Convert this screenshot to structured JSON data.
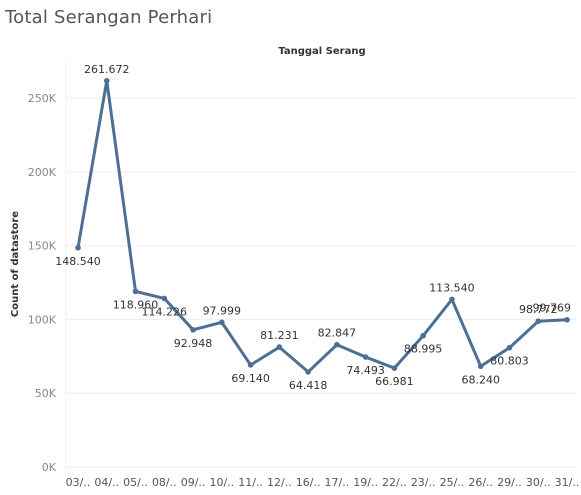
{
  "title": "Total Serangan Perhari",
  "chart_data": {
    "type": "line",
    "title": "Total Serangan Perhari",
    "xlabel": "Tanggal Serang",
    "ylabel": "Count of datastore",
    "categories": [
      "03/..",
      "04/..",
      "05/..",
      "08/..",
      "09/..",
      "10/..",
      "11/..",
      "12/..",
      "16/..",
      "17/..",
      "19/..",
      "22/..",
      "23/..",
      "25/..",
      "26/..",
      "29/..",
      "30/..",
      "31/.."
    ],
    "series": [
      {
        "values": [
          148540,
          261672,
          118960,
          114226,
          92948,
          97999,
          69140,
          81231,
          64418,
          82847,
          74493,
          66981,
          88995,
          113540,
          68240,
          80803,
          98772,
          99769
        ],
        "labels": [
          "148.540",
          "261.672",
          "118.960",
          "114.226",
          "92.948",
          "97.999",
          "69.140",
          "81.231",
          "64.418",
          "82.847",
          "74.493",
          "66.981",
          "88.995",
          "113.540",
          "68.240",
          "80.803",
          "98.772",
          "99.769"
        ]
      }
    ],
    "yticks": [
      0,
      50000,
      100000,
      150000,
      200000,
      250000
    ],
    "ytick_labels": [
      "0K",
      "50K",
      "100K",
      "150K",
      "200K",
      "250K"
    ],
    "ylim": [
      0,
      275000
    ],
    "grid": true,
    "line_color": "#4e6f95"
  }
}
